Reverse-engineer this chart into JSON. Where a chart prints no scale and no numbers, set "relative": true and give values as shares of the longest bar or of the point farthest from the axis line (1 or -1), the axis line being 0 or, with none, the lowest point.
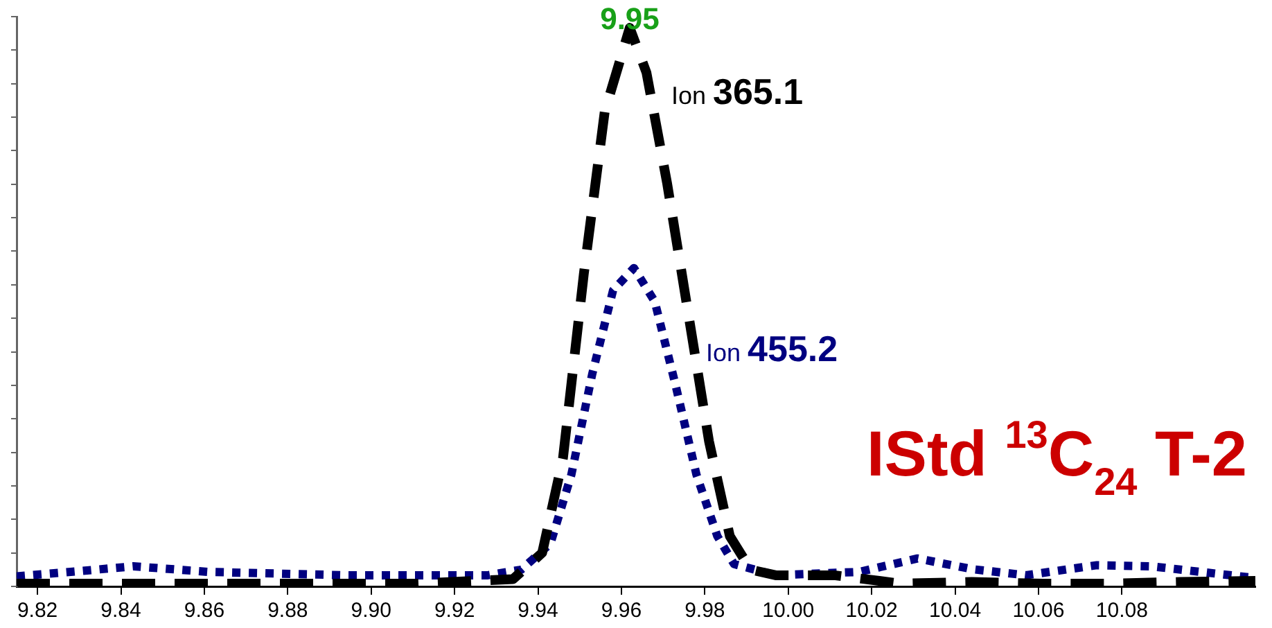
{
  "chart_data": {
    "type": "line",
    "title": "IStd $^{13}$C$_{24}$ T-2",
    "relative": true,
    "xlim": [
      9.815,
      10.112
    ],
    "xticks": [
      9.82,
      9.84,
      9.86,
      9.88,
      {
        "value": 9.9,
        "label": "9.90"
      },
      9.92,
      9.94,
      9.96,
      9.98,
      {
        "value": 10,
        "label": "10.00"
      },
      10.02,
      10.04,
      10.06,
      10.08
    ],
    "grid": false,
    "legend": false,
    "marker": "none",
    "annotations": [
      {
        "text": "9.95",
        "x": 9.962,
        "y": 1
      }
    ],
    "series": [
      {
        "name": "Ion 365.1",
        "color": "#000000",
        "line_style": "dashed",
        "x": [
          9.815,
          9.844,
          9.878,
          9.911,
          9.934,
          9.941,
          9.946,
          9.951,
          9.956,
          9.962,
          9.966,
          9.971,
          9.976,
          9.981,
          9.986,
          9.991,
          9.997,
          10.011,
          10.027,
          10.044,
          10.061,
          10.077,
          10.094,
          10.112
        ],
        "values": [
          0.005,
          0.005,
          0.005,
          0.005,
          0.013,
          0.06,
          0.23,
          0.56,
          0.85,
          1,
          0.92,
          0.72,
          0.49,
          0.26,
          0.09,
          0.03,
          0.02,
          0.02,
          0.005,
          0.008,
          0.005,
          0.005,
          0.008,
          0.01
        ]
      },
      {
        "name": "Ion 455.2",
        "color": "#000080",
        "line_style": "dotted",
        "x": [
          9.815,
          9.828,
          9.843,
          9.861,
          9.894,
          9.928,
          9.936,
          9.943,
          9.948,
          9.953,
          9.958,
          9.963,
          9.968,
          9.973,
          9.978,
          9.983,
          9.987,
          9.997,
          10.017,
          10.031,
          10.044,
          10.057,
          10.074,
          10.087,
          10.112
        ],
        "values": [
          0.018,
          0.026,
          0.036,
          0.026,
          0.02,
          0.02,
          0.03,
          0.077,
          0.2,
          0.38,
          0.53,
          0.57,
          0.51,
          0.36,
          0.2,
          0.09,
          0.04,
          0.02,
          0.026,
          0.05,
          0.031,
          0.02,
          0.038,
          0.036,
          0.015
        ]
      }
    ]
  }
}
